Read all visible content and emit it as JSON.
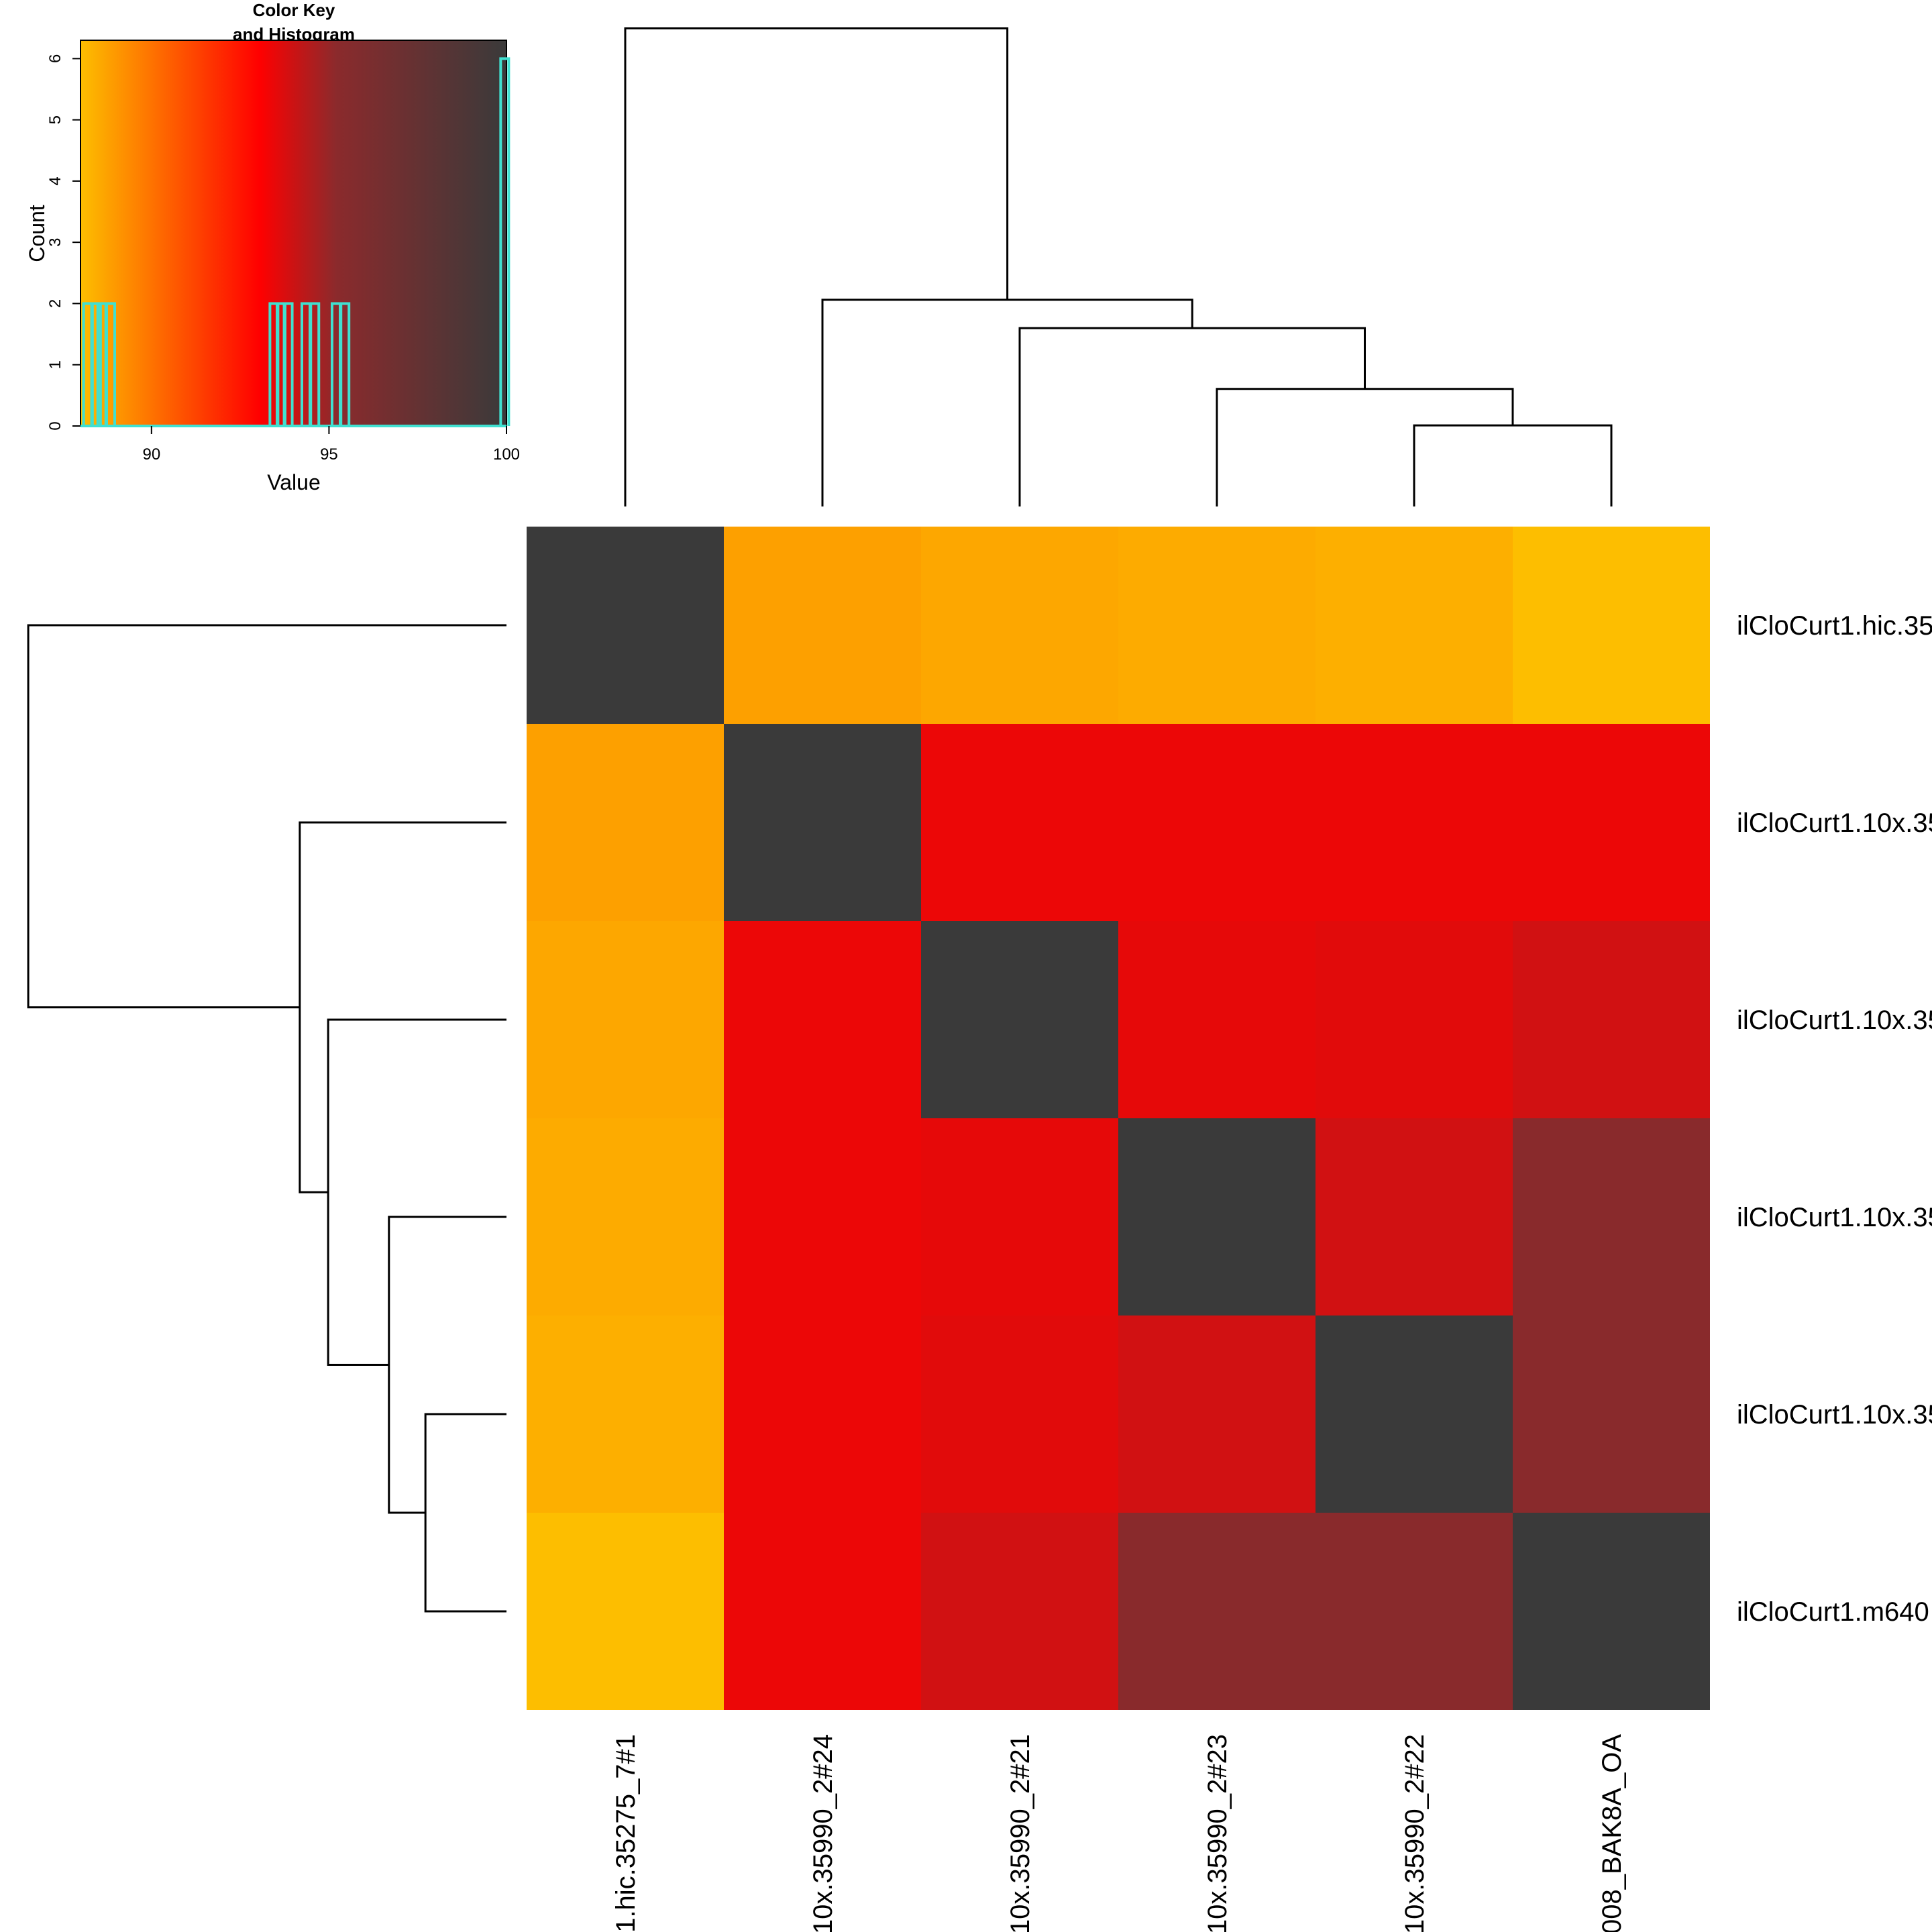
{
  "chart_data": [
    {
      "type": "heatmap",
      "title": "",
      "row_labels_visible": [
        "ilCloCurt1.hic.35",
        "ilCloCurt1.10x.35",
        "ilCloCurt1.10x.35",
        "ilCloCurt1.10x.35",
        "ilCloCurt1.10x.35",
        "ilCloCurt1.m640"
      ],
      "col_labels_visible": [
        "1.hic.35275_7#1",
        "10x.35990_2#24",
        "10x.35990_2#21",
        "10x.35990_2#23",
        "10x.35990_2#22",
        "008_BAK8A_OA"
      ],
      "values": [
        [
          100,
          88.8,
          88.6,
          88.5,
          88.4,
          88.0
        ],
        [
          88.8,
          100,
          93.4,
          93.4,
          93.4,
          93.4
        ],
        [
          88.6,
          93.4,
          100,
          93.5,
          93.6,
          93.9
        ],
        [
          88.5,
          93.4,
          93.5,
          100,
          93.9,
          95.3
        ],
        [
          88.4,
          93.4,
          93.6,
          93.9,
          100,
          95.3
        ],
        [
          88.0,
          93.4,
          93.9,
          95.3,
          95.3,
          100
        ]
      ],
      "color_scale": {
        "min": 88,
        "max": 100,
        "stops": [
          "#fdbe00",
          "#ff0000",
          "#8b2a2c",
          "#3a3a3a"
        ]
      },
      "dendrogram": {
        "leaf_order": [
          0,
          1,
          2,
          3,
          4,
          5
        ],
        "merges": [
          {
            "a": "L4",
            "b": "L5",
            "height": 1.0
          },
          {
            "a": "L3",
            "b": "N0",
            "height": 1.45
          },
          {
            "a": "L2",
            "b": "N1",
            "height": 2.2
          },
          {
            "a": "L1",
            "b": "N2",
            "height": 2.55
          },
          {
            "a": "L0",
            "b": "N3",
            "height": 5.9
          }
        ],
        "max_height": 6.0
      }
    },
    {
      "type": "histogram",
      "title": "Color Key\nand Histogram",
      "title_line1": "Color Key",
      "title_line2": "and Histogram",
      "xlabel": "Value",
      "ylabel": "Count",
      "xlim": [
        88,
        100
      ],
      "ylim": [
        0,
        6.3
      ],
      "xticks": [
        90,
        95,
        100
      ],
      "yticks": [
        0,
        1,
        2,
        3,
        4,
        5,
        6
      ],
      "line_color": "#40e0d0",
      "bins": [
        {
          "x": 88.2,
          "count": 2
        },
        {
          "x": 88.45,
          "count": 2
        },
        {
          "x": 88.6,
          "count": 2
        },
        {
          "x": 88.85,
          "count": 2
        },
        {
          "x": 93.45,
          "count": 2
        },
        {
          "x": 93.65,
          "count": 2
        },
        {
          "x": 93.85,
          "count": 2
        },
        {
          "x": 94.35,
          "count": 2
        },
        {
          "x": 94.6,
          "count": 2
        },
        {
          "x": 95.2,
          "count": 2
        },
        {
          "x": 95.45,
          "count": 2
        },
        {
          "x": 99.95,
          "count": 6
        }
      ]
    }
  ]
}
